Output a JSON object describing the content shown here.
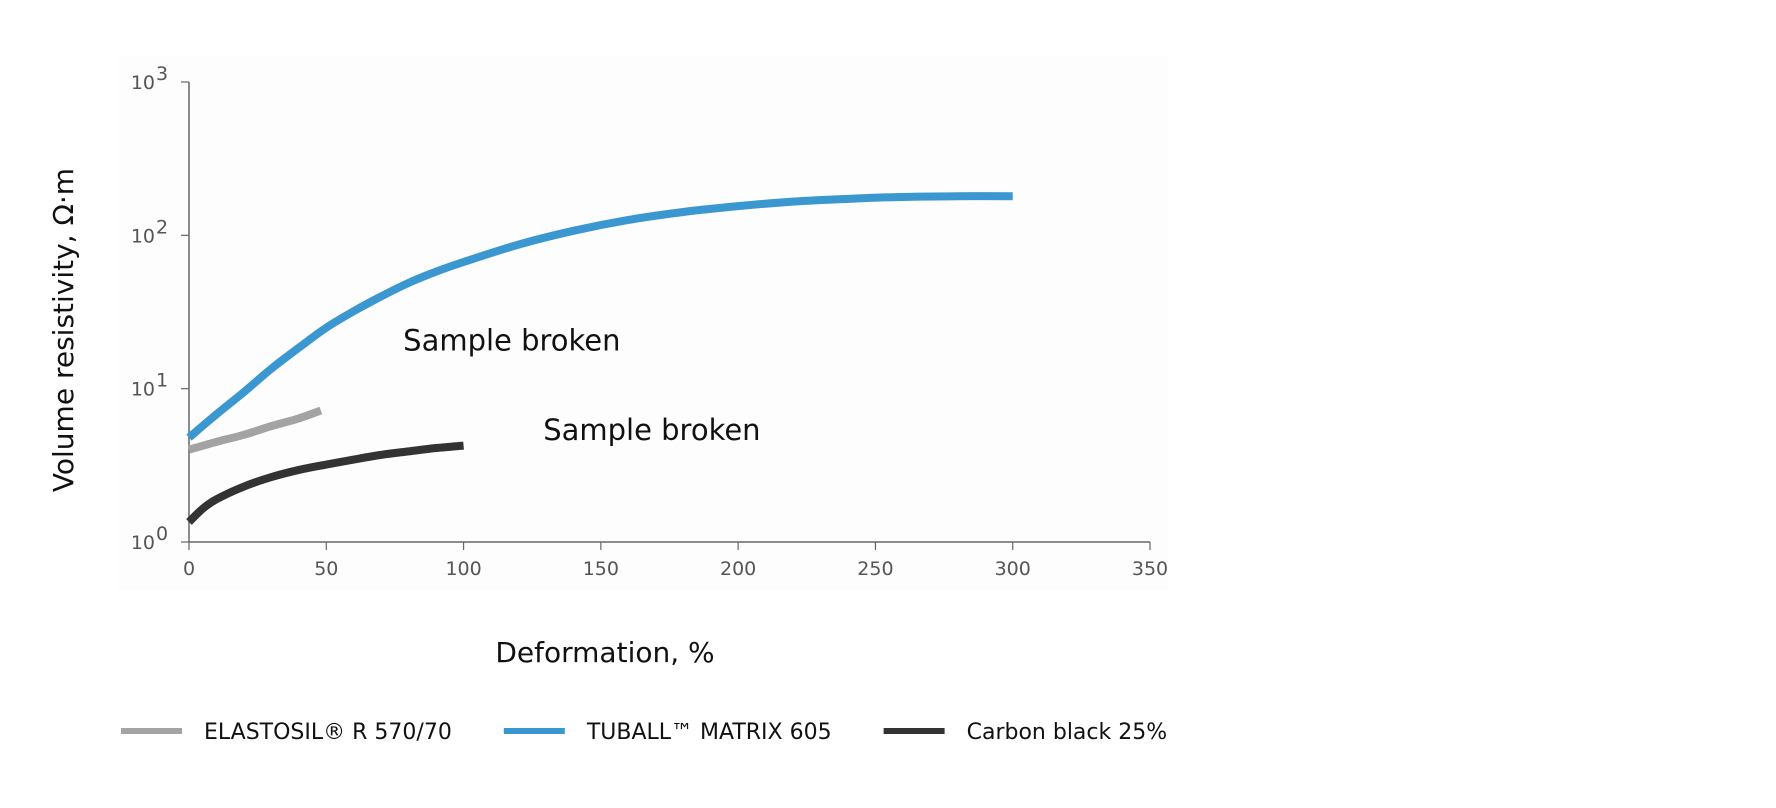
{
  "colors": {
    "plot_background": "#fdfdfd",
    "axis": "#666666"
  },
  "chart_data": {
    "type": "line",
    "xlabel": "Deformation, %",
    "ylabel": "Volume resistivity, Ω·m",
    "xlim": [
      0,
      350
    ],
    "ylim": [
      1,
      1000
    ],
    "yscale": "log",
    "grid": false,
    "legend_position": "bottom",
    "xticks": [
      0,
      50,
      100,
      150,
      200,
      250,
      300,
      350
    ],
    "xtick_labels": [
      "0",
      "50",
      "100",
      "150",
      "200",
      "250",
      "300",
      "350"
    ],
    "yticks": [
      1,
      10,
      100,
      1000
    ],
    "ytick_bases": [
      "10",
      "10",
      "10",
      "10"
    ],
    "ytick_exponents": [
      "0",
      "1",
      "2",
      "3"
    ],
    "series": [
      {
        "name": "ELASTOSIL® R 570/70",
        "color": "#a3a3a3",
        "x": [
          0,
          10,
          20,
          30,
          40,
          48
        ],
        "y": [
          4.0,
          4.5,
          5.0,
          5.7,
          6.4,
          7.2
        ]
      },
      {
        "name": "TUBALL™  MATRIX 605",
        "color": "#3b97cf",
        "x": [
          0,
          10,
          20,
          30,
          40,
          50,
          60,
          70,
          80,
          90,
          100,
          120,
          140,
          160,
          180,
          200,
          220,
          240,
          260,
          280,
          300
        ],
        "y": [
          4.8,
          6.8,
          9.5,
          13.5,
          18.5,
          25,
          32,
          40,
          49,
          58,
          67,
          87,
          107,
          126,
          142,
          155,
          166,
          173,
          178,
          180,
          180
        ]
      },
      {
        "name": "Carbon black 25%",
        "color": "#333333",
        "x": [
          0,
          5,
          10,
          20,
          30,
          40,
          50,
          60,
          70,
          80,
          90,
          100
        ],
        "y": [
          1.35,
          1.65,
          1.9,
          2.3,
          2.65,
          2.95,
          3.2,
          3.45,
          3.7,
          3.9,
          4.1,
          4.25
        ]
      }
    ],
    "annotations": [
      {
        "text": "Sample broken",
        "x": 78,
        "y": 20
      },
      {
        "text": "Sample broken",
        "x": 129,
        "y": 5.2
      }
    ]
  }
}
